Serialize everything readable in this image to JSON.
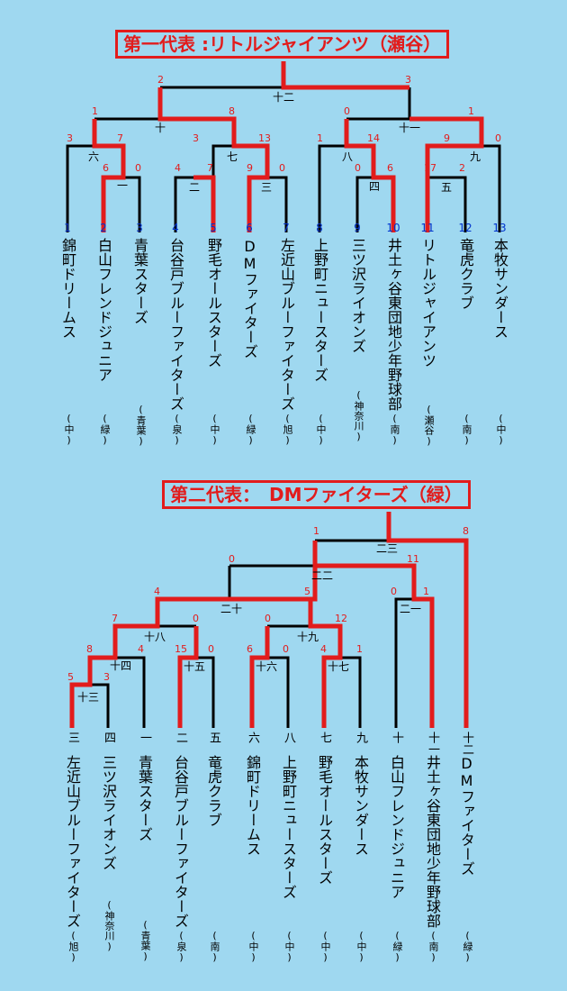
{
  "bracket1": {
    "title": "第一代表 :リトルジャイアンツ（瀬谷）",
    "teams": [
      {
        "num": "1",
        "name": "錦町ドリームス",
        "region": "(中)"
      },
      {
        "num": "2",
        "name": "白山フレンドジュニア",
        "region": "(緑)"
      },
      {
        "num": "3",
        "name": "青葉スターズ",
        "region": "(青葉)"
      },
      {
        "num": "4",
        "name": "台谷戸ブルーファイターズ",
        "region": "(泉)"
      },
      {
        "num": "5",
        "name": "野毛オールスターズ",
        "region": "(中)"
      },
      {
        "num": "6",
        "name": "DMファイターズ",
        "region": "(緑)"
      },
      {
        "num": "7",
        "name": "左近山ブルーファイターズ",
        "region": "(旭)"
      },
      {
        "num": "8",
        "name": "上野町ニュースターズ",
        "region": "(中)"
      },
      {
        "num": "9",
        "name": "三ツ沢ライオンズ",
        "region": "(神奈川)"
      },
      {
        "num": "10",
        "name": "井土ヶ谷東団地少年野球部",
        "region": "(南)"
      },
      {
        "num": "11",
        "name": "リトルジャイアンツ",
        "region": "(瀬谷)"
      },
      {
        "num": "12",
        "name": "竜虎クラブ",
        "region": "(南)"
      },
      {
        "num": "13",
        "name": "本牧サンダース",
        "region": "(中)"
      }
    ],
    "games": [
      "一",
      "二",
      "三",
      "四",
      "五",
      "六",
      "七",
      "八",
      "九",
      "十",
      "十一",
      "十二"
    ],
    "scores": [
      "6",
      "0",
      "4",
      "7",
      "9",
      "0",
      "0",
      "6",
      "17",
      "2",
      "3",
      "7",
      "3",
      "13",
      "1",
      "14",
      "9",
      "0",
      "1",
      "8",
      "0",
      "1",
      "2",
      "3"
    ]
  },
  "bracket2": {
    "title": "第二代表：　DMファイターズ（緑）",
    "teams": [
      {
        "mark": "三",
        "name": "左近山ブルーファイターズ",
        "region": "(旭)"
      },
      {
        "mark": "四",
        "name": "三ツ沢ライオンズ",
        "region": "(神奈川)"
      },
      {
        "mark": "一",
        "name": "青葉スターズ",
        "region": "(青葉)"
      },
      {
        "mark": "二",
        "name": "台谷戸ブルーファイターズ",
        "region": "(泉)"
      },
      {
        "mark": "五",
        "name": "竜虎クラブ",
        "region": "(南)"
      },
      {
        "mark": "六",
        "name": "錦町ドリームス",
        "region": "(中)"
      },
      {
        "mark": "八",
        "name": "上野町ニュースターズ",
        "region": "(中)"
      },
      {
        "mark": "七",
        "name": "野毛オールスターズ",
        "region": "(中)"
      },
      {
        "mark": "九",
        "name": "本牧サンダース",
        "region": "(中)"
      },
      {
        "mark": "十",
        "name": "白山フレンドジュニア",
        "region": "(緑)"
      },
      {
        "mark": "十一",
        "name": "井土ヶ谷東団地少年野球部",
        "region": "(南)"
      },
      {
        "mark": "十二",
        "name": "DMファイターズ",
        "region": "(緑)"
      }
    ],
    "games": [
      "十三",
      "十四",
      "十五",
      "十六",
      "十七",
      "十八",
      "十九",
      "二十",
      "二一",
      "二二",
      "二三"
    ],
    "scores": [
      "5",
      "3",
      "8",
      "4",
      "15",
      "0",
      "6",
      "0",
      "4",
      "1",
      "7",
      "0",
      "0",
      "12",
      "4",
      "5",
      "0",
      "1",
      "0",
      "11",
      "1",
      "8"
    ]
  },
  "colors": {
    "background": "#9fd8f0",
    "winner_line": "#e21c1c",
    "loser_line": "#000000",
    "team_number": "#0033cc"
  }
}
